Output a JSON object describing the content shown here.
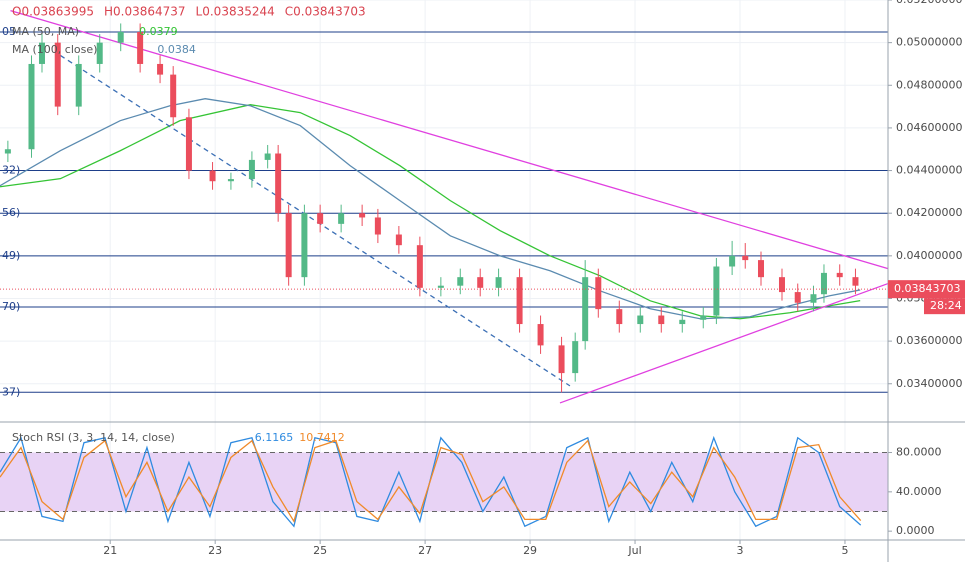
{
  "chart_data": [
    {
      "type": "candlestick",
      "header": [
        "O0.03863995",
        "H0.03864737",
        "L0.03835244",
        "C0.03843703"
      ],
      "x": [
        19.05,
        19.5,
        19.7,
        20.0,
        20.4,
        20.8,
        21.2,
        21.57,
        21.95,
        22.2,
        22.5,
        22.95,
        23.3,
        23.7,
        24.0,
        24.2,
        24.4,
        24.7,
        25.0,
        25.4,
        25.8,
        26.1,
        26.5,
        26.9,
        27.3,
        27.67,
        28.05,
        28.4,
        28.8,
        29.2,
        29.6,
        29.86,
        30.05,
        30.3,
        30.7,
        31.1,
        31.5,
        31.9,
        32.3,
        32.55,
        32.85,
        33.1,
        33.4,
        33.8,
        34.1,
        34.4,
        34.6,
        34.9,
        35.2
      ],
      "open": [
        0.0448,
        0.045,
        0.049,
        0.05,
        0.047,
        0.049,
        0.05,
        0.0505,
        0.049,
        0.0485,
        0.0465,
        0.044,
        0.0435,
        0.0436,
        0.0445,
        0.0448,
        0.042,
        0.039,
        0.042,
        0.0415,
        0.042,
        0.0418,
        0.041,
        0.0405,
        0.0385,
        0.0386,
        0.039,
        0.0385,
        0.039,
        0.0368,
        0.0358,
        0.0345,
        0.036,
        0.039,
        0.0375,
        0.0368,
        0.0372,
        0.0368,
        0.037,
        0.0372,
        0.0395,
        0.04,
        0.0398,
        0.039,
        0.0383,
        0.0378,
        0.0382,
        0.0392,
        0.039
      ],
      "high": [
        0.0454,
        0.0494,
        0.0504,
        0.0504,
        0.0494,
        0.0504,
        0.0509,
        0.0509,
        0.0494,
        0.0489,
        0.0469,
        0.0444,
        0.0439,
        0.0449,
        0.0452,
        0.0452,
        0.0424,
        0.0424,
        0.0424,
        0.0424,
        0.0424,
        0.0422,
        0.0414,
        0.0409,
        0.039,
        0.0394,
        0.0394,
        0.0394,
        0.0394,
        0.0372,
        0.0362,
        0.0364,
        0.0398,
        0.0394,
        0.0379,
        0.0376,
        0.0376,
        0.0374,
        0.0376,
        0.0399,
        0.0407,
        0.0406,
        0.0402,
        0.0394,
        0.0387,
        0.0386,
        0.0396,
        0.0396,
        0.0394
      ],
      "low": [
        0.0444,
        0.0446,
        0.0486,
        0.0466,
        0.0466,
        0.0486,
        0.0496,
        0.0486,
        0.0481,
        0.0461,
        0.0436,
        0.0431,
        0.0431,
        0.0432,
        0.0441,
        0.0416,
        0.0386,
        0.0386,
        0.0411,
        0.0411,
        0.0414,
        0.0406,
        0.0401,
        0.0381,
        0.0381,
        0.0382,
        0.0381,
        0.0381,
        0.0364,
        0.0354,
        0.0336,
        0.0341,
        0.0356,
        0.0371,
        0.0364,
        0.0364,
        0.0364,
        0.0364,
        0.0366,
        0.0368,
        0.0391,
        0.0394,
        0.0386,
        0.0379,
        0.0374,
        0.0374,
        0.0378,
        0.0386,
        0.0382
      ],
      "close": [
        0.045,
        0.049,
        0.05,
        0.047,
        0.049,
        0.05,
        0.0505,
        0.049,
        0.0485,
        0.0465,
        0.044,
        0.0435,
        0.0436,
        0.0445,
        0.0448,
        0.042,
        0.039,
        0.042,
        0.0415,
        0.042,
        0.0418,
        0.041,
        0.0405,
        0.0385,
        0.0386,
        0.039,
        0.0385,
        0.039,
        0.0368,
        0.0358,
        0.0345,
        0.036,
        0.039,
        0.0375,
        0.0368,
        0.0372,
        0.0368,
        0.037,
        0.0372,
        0.0395,
        0.04,
        0.0398,
        0.039,
        0.0383,
        0.0378,
        0.0382,
        0.0392,
        0.039,
        0.0386
      ],
      "up_color": "#53b987",
      "down_color": "#eb4d5c",
      "xlim": [
        18.9,
        35.82
      ],
      "xticks": [
        21,
        23,
        25,
        27,
        29,
        {
          "value": 31,
          "label": "Jul"
        },
        {
          "value": 33,
          "label": "3"
        },
        {
          "value": 35,
          "label": "5"
        }
      ],
      "ylim": [
        0.0323,
        0.052
      ],
      "yticks": [
        {
          "value": 0.034,
          "label": "0.03400000"
        },
        {
          "value": 0.036,
          "label": "0.03600000"
        },
        {
          "value": 0.038,
          "label": "0.03800000"
        },
        {
          "value": 0.04,
          "label": "0.04000000"
        },
        {
          "value": 0.042,
          "label": "0.04200000"
        },
        {
          "value": 0.044,
          "label": "0.04400000"
        },
        {
          "value": 0.046,
          "label": "0.04600000"
        },
        {
          "value": 0.048,
          "label": "0.04800000"
        },
        {
          "value": 0.05,
          "label": "0.05000000"
        },
        {
          "value": 0.052,
          "label": "0.05200000"
        }
      ],
      "grid": true,
      "series": [
        {
          "name": "MA (50, MA)",
          "color": "#35c435",
          "x": [
            18.9,
            20.05,
            21.19,
            22.33,
            23.67,
            24.62,
            25.57,
            26.52,
            27.48,
            28.43,
            29.38,
            30.33,
            31.29,
            32.24,
            33.0,
            33.95,
            34.71,
            35.29
          ],
          "values": [
            0.04324,
            0.04362,
            0.04493,
            0.04634,
            0.04709,
            0.04672,
            0.04564,
            0.04423,
            0.04259,
            0.04118,
            0.04,
            0.03907,
            0.03789,
            0.03719,
            0.03705,
            0.03733,
            0.03766,
            0.0379
          ]
        },
        {
          "name": "MA (100, close)",
          "color": "#5b8bb0",
          "x": [
            18.9,
            20.05,
            21.19,
            22.14,
            22.81,
            23.67,
            24.62,
            25.57,
            26.52,
            27.48,
            28.43,
            29.38,
            30.33,
            31.29,
            32.24,
            33.19,
            33.95,
            34.71,
            35.29
          ],
          "values": [
            0.04329,
            0.04493,
            0.04634,
            0.04704,
            0.04737,
            0.04704,
            0.04611,
            0.04423,
            0.04259,
            0.04094,
            0.04,
            0.0393,
            0.03836,
            0.03752,
            0.03705,
            0.03714,
            0.03766,
            0.03813,
            0.0384
          ]
        }
      ],
      "levels": [
        0.0505,
        0.044,
        0.042,
        0.04,
        0.0376,
        0.0336
      ],
      "level_labels": [
        "05",
        "32)",
        "56)",
        "49)",
        "70)",
        "37)"
      ],
      "level_color": "#1e3f8a",
      "trendlines": [
        {
          "x": [
            19.1,
            35.82
          ],
          "y": [
            0.0515,
            0.0394
          ],
          "color": "#e040e0",
          "dashed": false
        },
        {
          "x": [
            29.57,
            35.82
          ],
          "y": [
            0.0331,
            0.0387
          ],
          "color": "#e040e0",
          "dashed": false
        },
        {
          "x": [
            20.05,
            29.76
          ],
          "y": [
            0.0494,
            0.0339
          ],
          "color": "#3b6fb5",
          "dashed": true
        }
      ],
      "last_price": 0.03843703,
      "countdown": "28:24",
      "last_color": "#eb4d5c"
    },
    {
      "type": "line",
      "title": "Stoch RSI (3, 3, 14, 14, close)",
      "x": [
        18.9,
        19.3,
        19.7,
        20.1,
        20.5,
        20.9,
        21.3,
        21.7,
        22.1,
        22.5,
        22.9,
        23.3,
        23.7,
        24.1,
        24.5,
        24.9,
        25.3,
        25.7,
        26.1,
        26.5,
        26.9,
        27.3,
        27.7,
        28.1,
        28.5,
        28.9,
        29.3,
        29.7,
        30.1,
        30.5,
        30.9,
        31.3,
        31.7,
        32.1,
        32.5,
        32.9,
        33.3,
        33.7,
        34.1,
        34.5,
        34.9,
        35.3
      ],
      "series": [
        {
          "color": "#2f8be0",
          "values": [
            60,
            95,
            15,
            10,
            90,
            95,
            20,
            85,
            10,
            70,
            15,
            90,
            95,
            30,
            5,
            95,
            90,
            15,
            10,
            60,
            10,
            95,
            70,
            20,
            55,
            5,
            15,
            85,
            95,
            10,
            60,
            20,
            70,
            30,
            95,
            40,
            5,
            15,
            95,
            80,
            25,
            6.1165
          ]
        },
        {
          "color": "#f08a2a",
          "values": [
            55,
            85,
            30,
            12,
            75,
            92,
            35,
            70,
            20,
            55,
            25,
            75,
            92,
            45,
            10,
            85,
            92,
            30,
            12,
            45,
            18,
            85,
            78,
            30,
            45,
            12,
            12,
            70,
            92,
            25,
            50,
            28,
            60,
            35,
            85,
            55,
            12,
            12,
            85,
            88,
            35,
            10.7412
          ]
        }
      ],
      "ylim": [
        -9,
        108
      ],
      "yticks": [
        {
          "value": 0,
          "label": "0.0000"
        },
        {
          "value": 40,
          "label": "40.0000"
        },
        {
          "value": 80,
          "label": "80.0000"
        }
      ],
      "bands": [
        20,
        80
      ],
      "band_color": "#e8d3f5"
    }
  ]
}
